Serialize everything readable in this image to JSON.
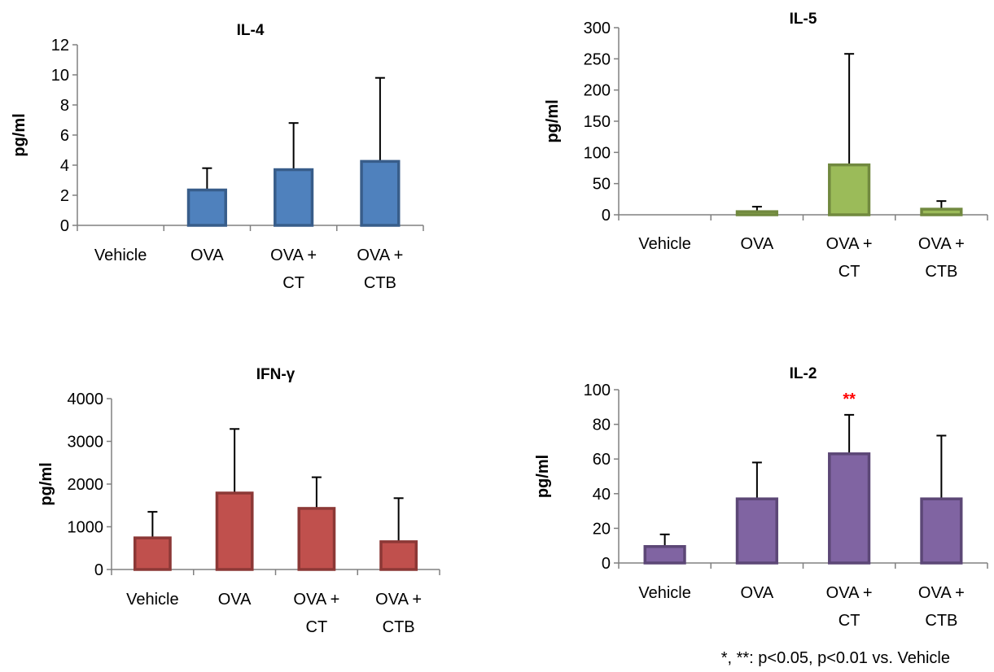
{
  "footnote": "*, **: p<0.05, p<0.01 vs. Vehicle",
  "chart_data": [
    {
      "type": "bar",
      "title": "IL-4",
      "ylabel": "pg/ml",
      "ylim": [
        0,
        12
      ],
      "yticks": [
        "0",
        "2",
        "4",
        "6",
        "8",
        "10",
        "12"
      ],
      "categories": [
        [
          "Vehicle"
        ],
        [
          "OVA"
        ],
        [
          "OVA +",
          "CT"
        ],
        [
          "OVA +",
          "CTB"
        ]
      ],
      "values": [
        0,
        2.35,
        3.7,
        4.25
      ],
      "errors": [
        0,
        1.45,
        3.1,
        5.55
      ],
      "significance": [
        "",
        "",
        "",
        ""
      ],
      "fill": "#4f81bd",
      "stroke": "#385d8a"
    },
    {
      "type": "bar",
      "title": "IL-5",
      "ylabel": "pg/ml",
      "ylim": [
        0,
        300
      ],
      "yticks": [
        "0",
        "50",
        "100",
        "150",
        "200",
        "250",
        "300"
      ],
      "categories": [
        [
          "Vehicle"
        ],
        [
          "OVA"
        ],
        [
          "OVA +",
          "CT"
        ],
        [
          "OVA +",
          "CTB"
        ]
      ],
      "values": [
        0,
        5,
        80,
        9
      ],
      "errors": [
        0,
        8,
        178,
        13
      ],
      "significance": [
        "",
        "",
        "",
        ""
      ],
      "fill": "#9bbb59",
      "stroke": "#71893f"
    },
    {
      "type": "bar",
      "title": "IFN-γ",
      "ylabel": "pg/ml",
      "ylim": [
        0,
        4000
      ],
      "yticks": [
        "0",
        "1000",
        "2000",
        "3000",
        "4000"
      ],
      "categories": [
        [
          "Vehicle"
        ],
        [
          "OVA"
        ],
        [
          "OVA +",
          "CT"
        ],
        [
          "OVA +",
          "CTB"
        ]
      ],
      "values": [
        740,
        1790,
        1430,
        650
      ],
      "errors": [
        610,
        1500,
        730,
        1020
      ],
      "significance": [
        "",
        "",
        "",
        ""
      ],
      "fill": "#c0504d",
      "stroke": "#8c3836"
    },
    {
      "type": "bar",
      "title": "IL-2",
      "ylabel": "pg/ml",
      "ylim": [
        0,
        100
      ],
      "yticks": [
        "0",
        "20",
        "40",
        "60",
        "80",
        "100"
      ],
      "categories": [
        [
          "Vehicle"
        ],
        [
          "OVA"
        ],
        [
          "OVA +",
          "CT"
        ],
        [
          "OVA +",
          "CTB"
        ]
      ],
      "values": [
        9.5,
        37,
        63,
        37
      ],
      "errors": [
        7,
        21,
        22.5,
        36.5
      ],
      "significance": [
        "",
        "",
        "**",
        ""
      ],
      "significance_color": "#ff0000",
      "fill": "#8064a2",
      "stroke": "#5c4776"
    }
  ]
}
